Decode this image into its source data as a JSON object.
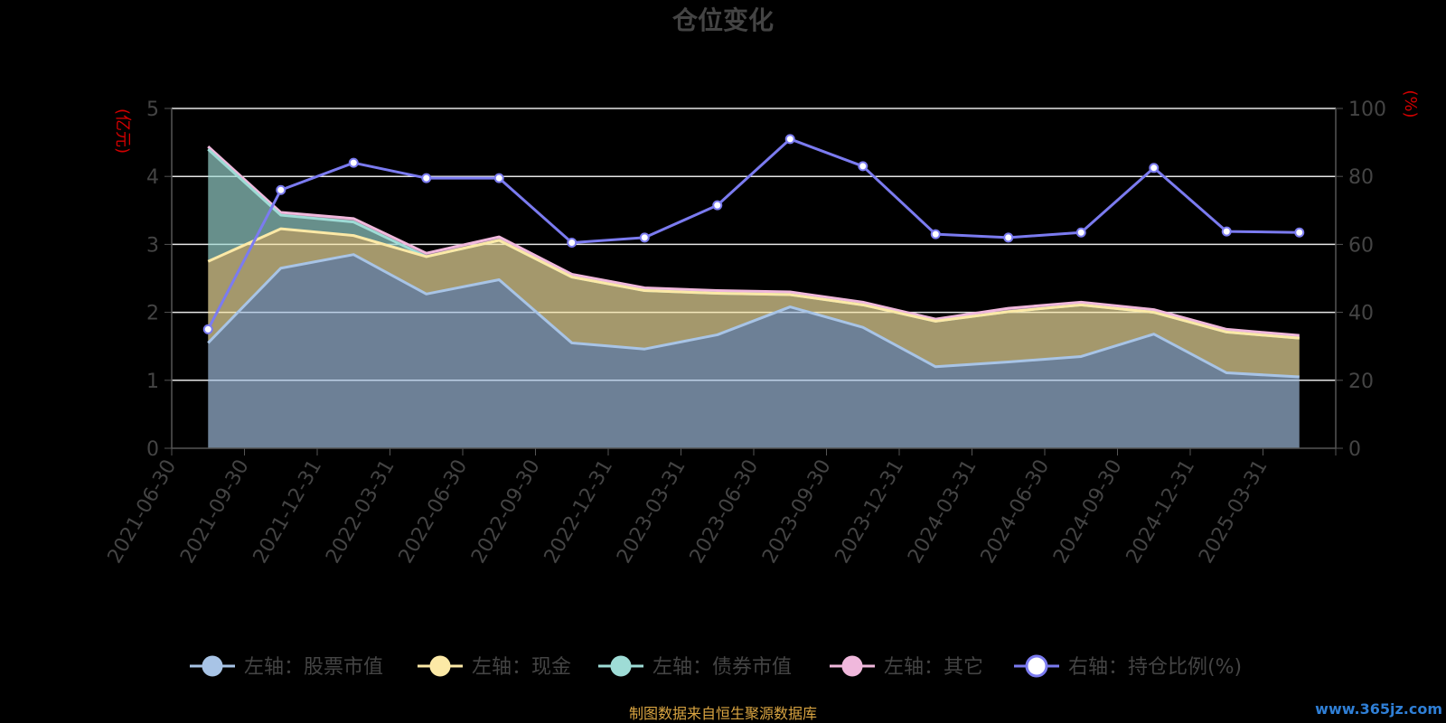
{
  "chart_data": {
    "type": "area",
    "title": "仓位变化",
    "left_axis_unit": "(亿元)",
    "right_axis_unit": "(%)",
    "left_ylim": [
      0,
      5
    ],
    "right_ylim": [
      0,
      100
    ],
    "left_ticks": [
      "0",
      "1",
      "2",
      "3",
      "4",
      "5"
    ],
    "right_ticks": [
      "0",
      "20",
      "40",
      "60",
      "80",
      "100"
    ],
    "grid": true,
    "legend_position": "bottom",
    "categories": [
      "2021-06-30",
      "2021-09-30",
      "2021-12-31",
      "2022-03-31",
      "2022-06-30",
      "2022-09-30",
      "2022-12-31",
      "2023-03-31",
      "2023-06-30",
      "2023-09-30",
      "2023-12-31",
      "2024-03-31",
      "2024-06-30",
      "2024-09-30",
      "2024-12-31",
      "2025-03-31"
    ],
    "series": [
      {
        "name": "左轴：股票市值",
        "axis": "left",
        "color": "#a8c4e6",
        "values": [
          1.55,
          2.65,
          2.85,
          2.27,
          2.48,
          1.55,
          1.46,
          1.67,
          2.08,
          1.78,
          1.2,
          1.27,
          1.35,
          1.68,
          1.11,
          1.05
        ]
      },
      {
        "name": "左轴：现金",
        "axis": "left",
        "color": "#fce9a6",
        "values": [
          1.2,
          0.58,
          0.28,
          0.55,
          0.58,
          0.97,
          0.86,
          0.61,
          0.18,
          0.33,
          0.67,
          0.74,
          0.76,
          0.32,
          0.6,
          0.57
        ]
      },
      {
        "name": "左轴：债券市值",
        "axis": "left",
        "color": "#9edcd6",
        "values": [
          1.65,
          0.2,
          0.2,
          0.0,
          0.0,
          0.0,
          0.0,
          0.0,
          0.0,
          0.0,
          0.0,
          0.0,
          0.0,
          0.0,
          0.0,
          0.0
        ]
      },
      {
        "name": "左轴：其它",
        "axis": "left",
        "color": "#f0b8dc",
        "values": [
          0.04,
          0.04,
          0.05,
          0.05,
          0.05,
          0.04,
          0.04,
          0.04,
          0.04,
          0.04,
          0.03,
          0.05,
          0.04,
          0.04,
          0.04,
          0.04
        ]
      },
      {
        "name": "右轴：持仓比例(%)",
        "axis": "right",
        "color": "#7b7bf0",
        "values": [
          35,
          76,
          84,
          79.5,
          79.5,
          60.5,
          62,
          71.5,
          91,
          83,
          63,
          62,
          63.5,
          82.5,
          63.8,
          63.5
        ]
      }
    ]
  },
  "source_text": "制图数据来自恒生聚源数据库",
  "watermark": "www.365jz.com"
}
